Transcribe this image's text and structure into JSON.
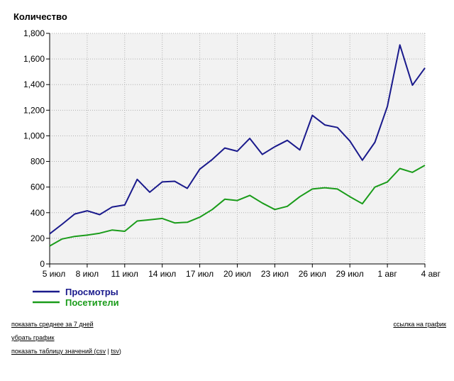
{
  "chart_data": {
    "type": "line",
    "title": "Количество",
    "x_ticks": [
      "5 июл",
      "8 июл",
      "11 июл",
      "14 июл",
      "17 июл",
      "20 июл",
      "23 июл",
      "26 июл",
      "29 июл",
      "1 авг",
      "4 авг"
    ],
    "x": [
      "5 июл",
      "6 июл",
      "7 июл",
      "8 июл",
      "9 июл",
      "10 июл",
      "11 июл",
      "12 июл",
      "13 июл",
      "14 июл",
      "15 июл",
      "16 июл",
      "17 июл",
      "18 июл",
      "19 июл",
      "20 июл",
      "21 июл",
      "22 июл",
      "23 июл",
      "24 июл",
      "25 июл",
      "26 июл",
      "27 июл",
      "28 июл",
      "29 июл",
      "30 июл",
      "31 июл",
      "1 авг",
      "2 авг",
      "3 авг",
      "4 авг"
    ],
    "y_ticks": [
      "0",
      "200",
      "400",
      "600",
      "800",
      "1,000",
      "1,200",
      "1,400",
      "1,600",
      "1,800"
    ],
    "ylim": [
      0,
      1800
    ],
    "grid": true,
    "legend_position": "bottom-left",
    "series": [
      {
        "name": "Просмотры",
        "color": "#1a1a8c",
        "values": [
          235,
          310,
          390,
          415,
          385,
          445,
          460,
          660,
          560,
          640,
          645,
          590,
          740,
          815,
          905,
          880,
          980,
          855,
          915,
          965,
          890,
          1160,
          1085,
          1065,
          960,
          810,
          950,
          1230,
          1710,
          1395,
          1530
        ]
      },
      {
        "name": "Посетители",
        "color": "#1a9c1a",
        "values": [
          140,
          195,
          215,
          225,
          240,
          265,
          255,
          335,
          345,
          355,
          320,
          325,
          365,
          425,
          505,
          495,
          535,
          475,
          425,
          450,
          525,
          585,
          595,
          585,
          525,
          470,
          600,
          640,
          745,
          715,
          770
        ]
      }
    ]
  },
  "links": {
    "avg7": "показать среднее за 7 дней",
    "remove_chart": "убрать график",
    "show_table_prefix": "показать таблицу значений (",
    "csv": "csv",
    "separator": " | ",
    "tsv": "tsv",
    "show_table_suffix": ")",
    "chart_link": "ссылка на график"
  }
}
